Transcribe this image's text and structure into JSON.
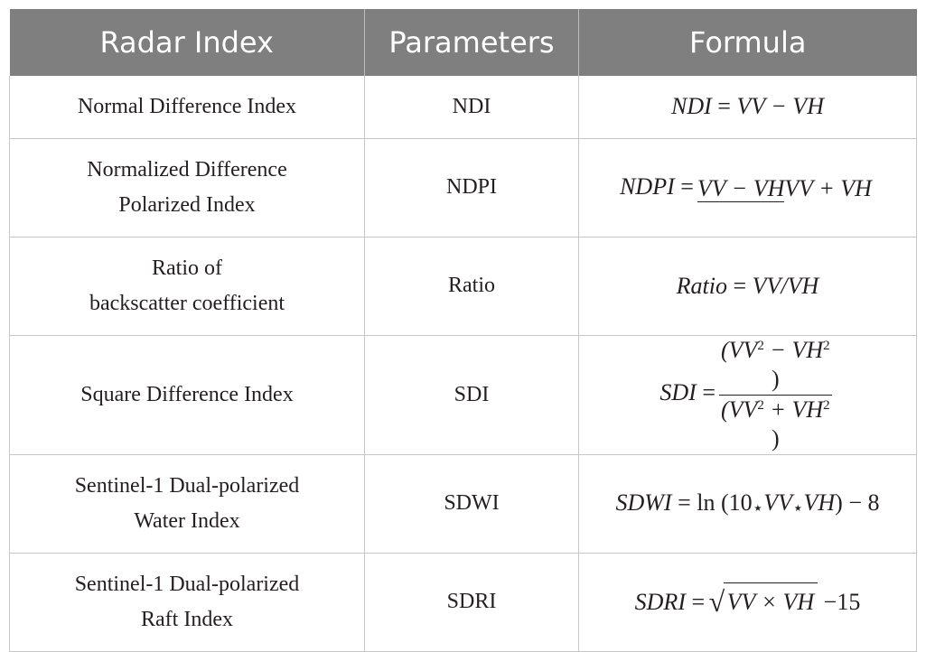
{
  "headers": [
    "Radar Index",
    "Parameters",
    "Formula"
  ],
  "rows": [
    {
      "index_lines": [
        "Normal Difference Index"
      ],
      "param": "NDI"
    },
    {
      "index_lines": [
        "Normalized Difference",
        "Polarized Index"
      ],
      "param": "NDPI"
    },
    {
      "index_lines": [
        "Ratio of",
        "backscatter coefficient"
      ],
      "param": "Ratio"
    },
    {
      "index_lines": [
        "Square Difference Index"
      ],
      "param": "SDI"
    },
    {
      "index_lines": [
        "Sentinel-1 Dual-polarized",
        "Water Index"
      ],
      "param": "SDWI"
    },
    {
      "index_lines": [
        "Sentinel-1 Dual-polarized",
        "Raft Index"
      ],
      "param": "SDRI"
    }
  ],
  "formulas": {
    "ndi": {
      "lhs": "NDI",
      "op": "=",
      "rhs": "VV − VH"
    },
    "ndpi": {
      "lhs": "NDPI",
      "op": "=",
      "num": "VV − VH",
      "den": "VV + VH"
    },
    "ratio": {
      "lhs": "Ratio",
      "op": "=",
      "rhs": "VV/VH"
    },
    "sdi": {
      "lhs": "SDI",
      "op": "=",
      "num_a": "(VV",
      "num_b": " − VH",
      "num_c": ")",
      "den_a": "(VV",
      "den_b": " + VH",
      "den_c": ")",
      "exp": "2"
    },
    "sdwi": {
      "lhs": "SDWI",
      "op": "=",
      "fn": "ln",
      "open": " (10",
      "star": "⋆",
      "vv": "VV",
      "vh": "VH",
      "close": ") − 8"
    },
    "sdri": {
      "lhs": "SDRI",
      "op": "=",
      "rad": "√",
      "inner": "VV × VH",
      "tail": " −15"
    }
  }
}
